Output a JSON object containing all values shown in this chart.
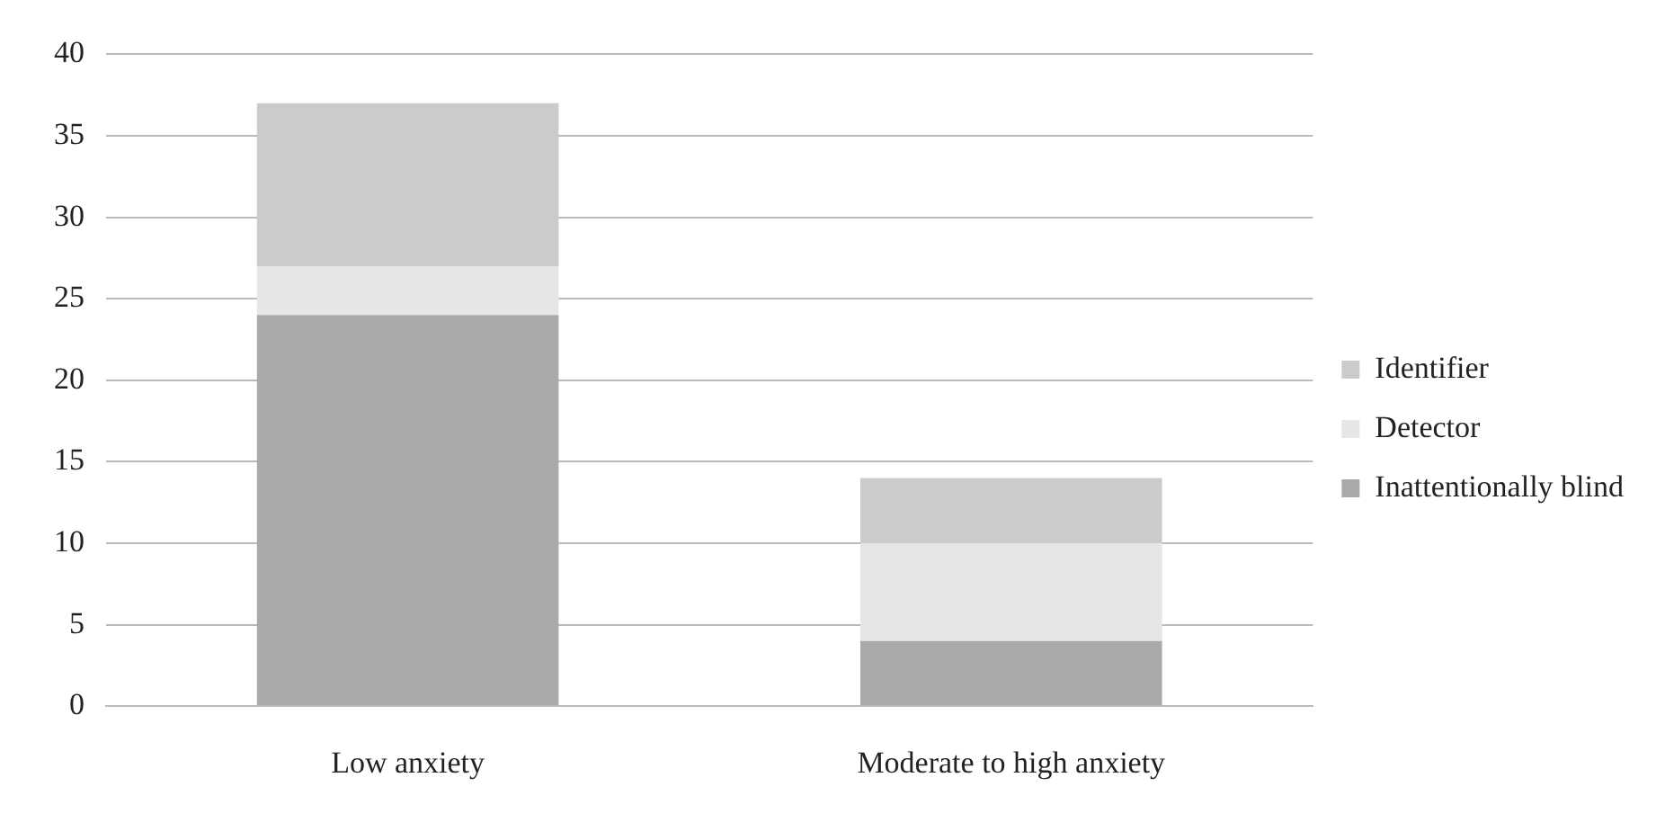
{
  "chart_data": {
    "type": "bar",
    "stacked": true,
    "categories": [
      "Low anxiety",
      "Moderate to high anxiety"
    ],
    "series": [
      {
        "name": "Inattentionally blind",
        "color": "#a9a9a9",
        "values": [
          24,
          4
        ]
      },
      {
        "name": "Detector",
        "color": "#e6e6e6",
        "values": [
          3,
          6
        ]
      },
      {
        "name": "Identifier",
        "color": "#cbcbcb",
        "values": [
          10,
          4
        ]
      }
    ],
    "ylim": [
      0,
      40
    ],
    "yticks": [
      0,
      5,
      10,
      15,
      20,
      25,
      30,
      35,
      40
    ],
    "grid": "y",
    "legend": "right"
  }
}
